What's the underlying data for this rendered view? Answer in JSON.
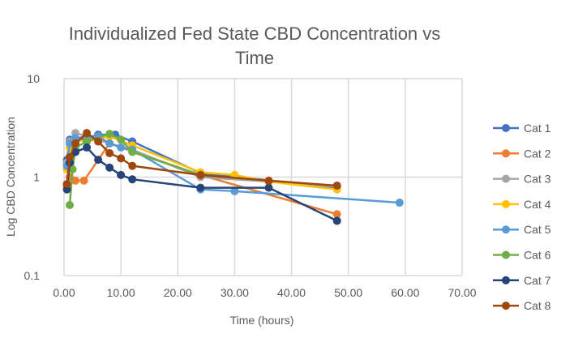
{
  "chart_data": {
    "type": "line",
    "title": [
      "Individualized Fed State CBD Concentration vs",
      "Time"
    ],
    "xlabel": "Time (hours)",
    "ylabel": "Log CBD Concentration",
    "xlim": [
      0,
      70
    ],
    "ylim": [
      0.1,
      10
    ],
    "yscale": "log",
    "xticks": [
      "0.00",
      "10.00",
      "20.00",
      "30.00",
      "40.00",
      "50.00",
      "60.00",
      "70.00"
    ],
    "yticks": [
      "0.1",
      "1",
      "10"
    ],
    "grid": true,
    "legend": "right",
    "series": [
      {
        "name": "Cat 1",
        "color": "#4472C4",
        "x": [
          0.5,
          1,
          2,
          4,
          6,
          9,
          12,
          24,
          48
        ],
        "y": [
          1.5,
          2.4,
          2.3,
          2.5,
          2.7,
          2.7,
          2.3,
          1.1,
          0.78
        ]
      },
      {
        "name": "Cat 2",
        "color": "#ED7D31",
        "x": [
          0.5,
          1,
          2,
          3.5,
          8,
          24,
          48
        ],
        "y": [
          0.8,
          1.0,
          0.92,
          0.92,
          2.2,
          1.05,
          0.42
        ]
      },
      {
        "name": "Cat 3",
        "color": "#A5A5A5",
        "x": [
          0.5,
          1,
          2,
          4,
          8,
          12,
          24,
          36,
          48
        ],
        "y": [
          1.4,
          2.3,
          2.8,
          2.6,
          2.2,
          1.9,
          1.0,
          0.9,
          0.8
        ]
      },
      {
        "name": "Cat 4",
        "color": "#FFC000",
        "x": [
          0.5,
          1,
          2,
          4,
          8,
          12,
          24,
          30,
          36,
          48
        ],
        "y": [
          1.2,
          2.0,
          2.4,
          2.3,
          2.6,
          2.1,
          1.12,
          1.05,
          0.9,
          0.75
        ]
      },
      {
        "name": "Cat 5",
        "color": "#5B9BD5",
        "x": [
          0.5,
          1,
          2,
          6,
          8,
          10,
          12,
          24,
          30,
          59
        ],
        "y": [
          1.3,
          2.2,
          2.5,
          2.6,
          2.2,
          2.0,
          1.9,
          0.75,
          0.72,
          0.55
        ]
      },
      {
        "name": "Cat 6",
        "color": "#70AD47",
        "x": [
          1,
          1.5,
          2,
          4,
          8,
          10,
          12,
          24
        ],
        "y": [
          0.52,
          1.2,
          2.0,
          2.3,
          2.75,
          2.4,
          1.8,
          1.05
        ]
      },
      {
        "name": "Cat 7",
        "color": "#264478",
        "x": [
          0.5,
          1,
          2,
          4,
          6,
          8,
          10,
          12,
          24,
          36,
          48
        ],
        "y": [
          0.75,
          1.4,
          1.8,
          2.0,
          1.5,
          1.25,
          1.05,
          0.95,
          0.78,
          0.78,
          0.36
        ]
      },
      {
        "name": "Cat 8",
        "color": "#9E480E",
        "x": [
          0.5,
          1,
          2,
          4,
          6,
          8,
          10,
          12,
          24,
          36,
          48
        ],
        "y": [
          0.85,
          1.6,
          2.2,
          2.8,
          2.3,
          1.75,
          1.55,
          1.3,
          1.05,
          0.92,
          0.82
        ]
      }
    ]
  }
}
